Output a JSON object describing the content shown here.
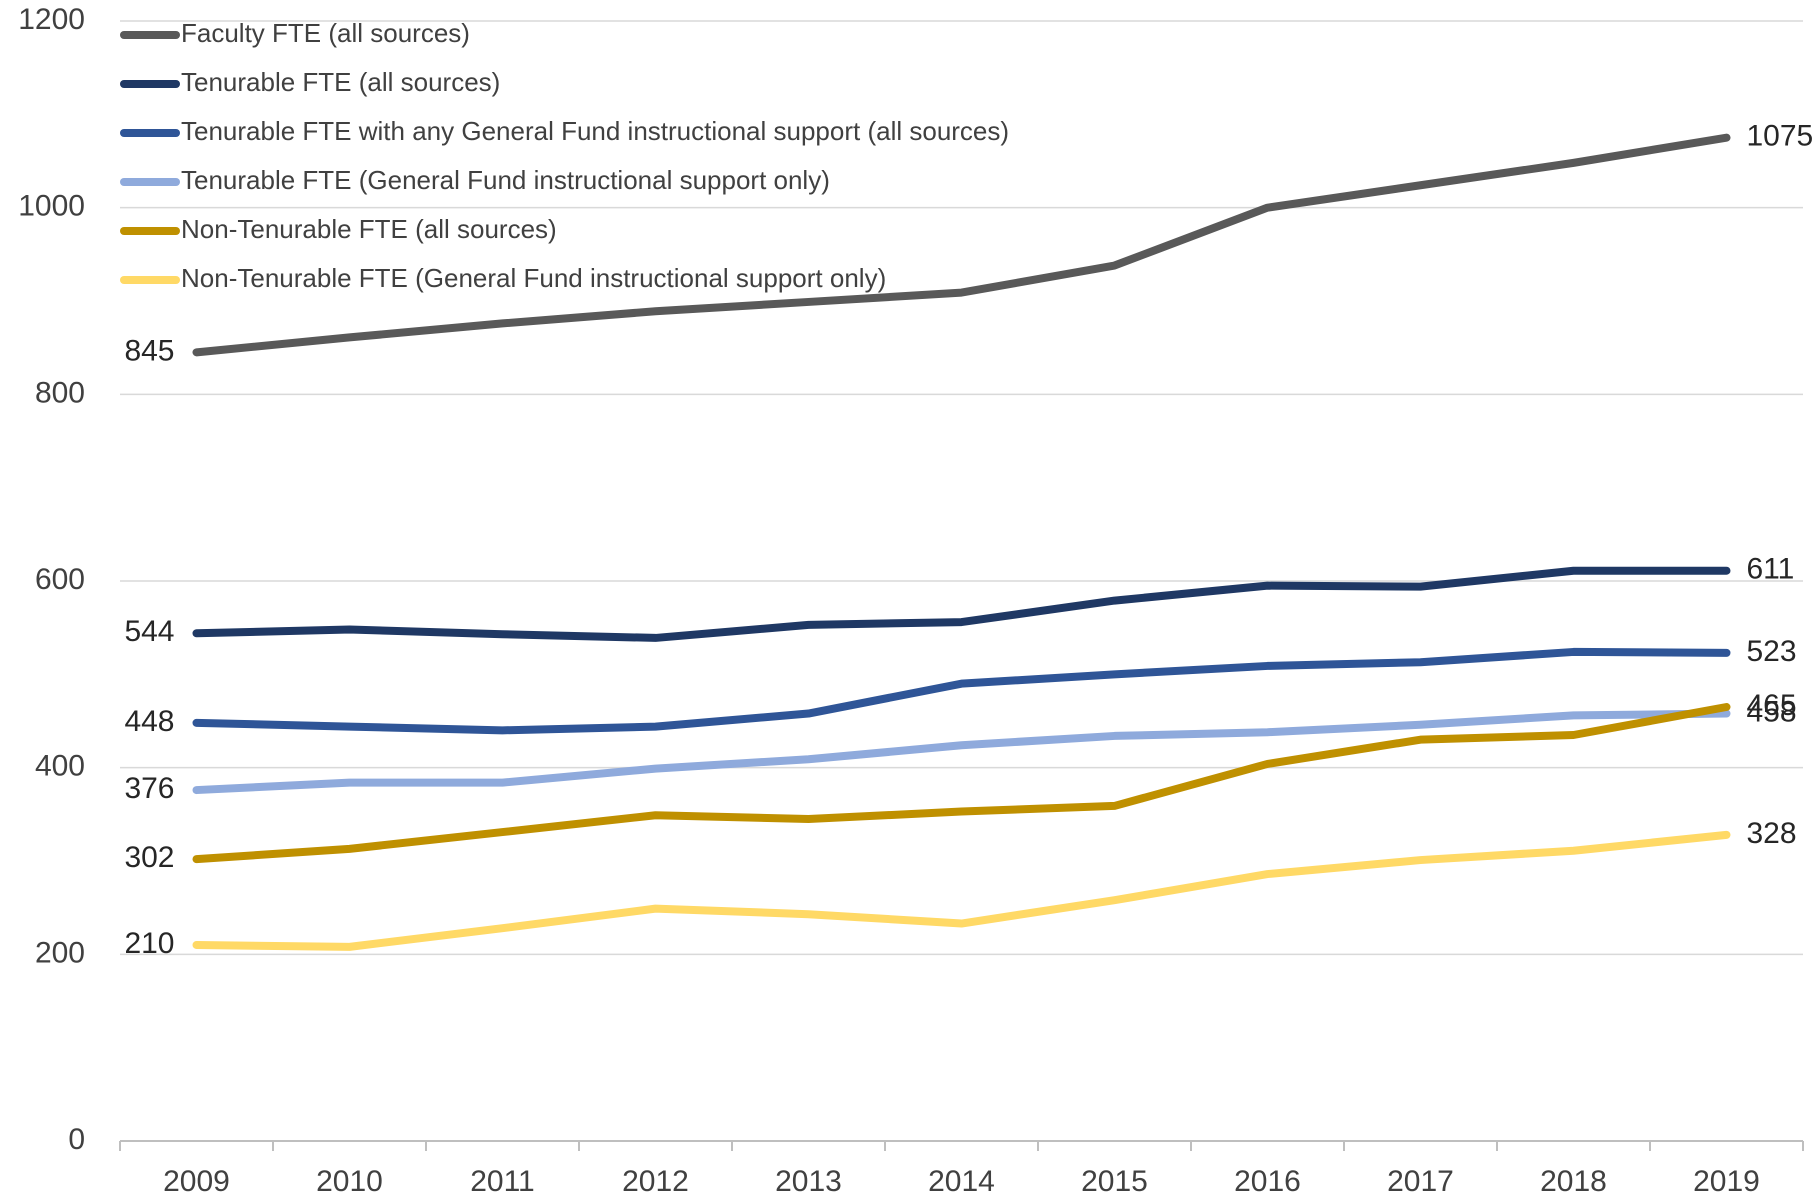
{
  "chart_data": {
    "type": "line",
    "categories": [
      "2009",
      "2010",
      "2011",
      "2012",
      "2013",
      "2014",
      "2015",
      "2016",
      "2017",
      "2018",
      "2019"
    ],
    "series": [
      {
        "name": "Faculty FTE (all sources)",
        "color": "#595959",
        "values": [
          845,
          861,
          876,
          889,
          899,
          909,
          938,
          1000,
          1024,
          1048,
          1075
        ]
      },
      {
        "name": "Tenurable FTE (all sources)",
        "color": "#1f3864",
        "values": [
          544,
          548,
          543,
          539,
          553,
          556,
          579,
          595,
          594,
          611,
          611
        ]
      },
      {
        "name": "Tenurable FTE with any General Fund instructional support (all sources)",
        "color": "#2f5597",
        "values": [
          448,
          444,
          440,
          444,
          458,
          490,
          500,
          509,
          513,
          524,
          523
        ]
      },
      {
        "name": "Tenurable FTE (General Fund instructional support only)",
        "color": "#8faadc",
        "values": [
          376,
          384,
          384,
          399,
          409,
          424,
          434,
          438,
          446,
          456,
          458
        ]
      },
      {
        "name": "Non-Tenurable FTE (all sources)",
        "color": "#bf9000",
        "values": [
          302,
          313,
          331,
          349,
          345,
          353,
          359,
          404,
          430,
          435,
          465
        ]
      },
      {
        "name": "Non-Tenurable FTE (General Fund instructional support only)",
        "color": "#ffd966",
        "values": [
          210,
          208,
          228,
          249,
          243,
          233,
          258,
          286,
          301,
          311,
          328
        ]
      }
    ],
    "ylim": [
      0,
      1200
    ],
    "yticks": [
      0,
      200,
      400,
      600,
      800,
      1000,
      1200
    ],
    "grid": true,
    "legend": "top-left"
  }
}
